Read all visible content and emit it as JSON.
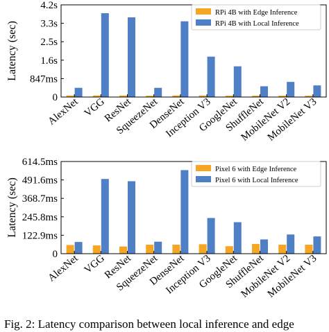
{
  "chart_data": [
    {
      "type": "bar",
      "ylabel": "Latency (sec)",
      "yticks": [
        "0",
        "847ms",
        "1.6s",
        "2.5s",
        "3.3s",
        "4.2s"
      ],
      "ylim": [
        0,
        4.2
      ],
      "categories": [
        "AlexNet",
        "VGG",
        "ResNet",
        "SqueezeNet",
        "DenseNet",
        "Inception V3",
        "GoogleNet",
        "ShuffleNet",
        "MobileNet V2",
        "MobileNet V3"
      ],
      "series": [
        {
          "name": "RPi 4B with Edge Inference",
          "color": "#f5a623",
          "values": [
            0.07,
            0.07,
            0.07,
            0.06,
            0.07,
            0.07,
            0.06,
            0.06,
            0.06,
            0.06
          ]
        },
        {
          "name": "RPi 4B with Local Inference",
          "color": "#4f7fc4",
          "values": [
            0.42,
            3.82,
            3.63,
            0.42,
            3.45,
            1.84,
            1.4,
            0.49,
            0.69,
            0.53
          ]
        }
      ],
      "legend": "top-right",
      "grid": false
    },
    {
      "type": "bar",
      "ylabel": "Latency (sec)",
      "yticks": [
        "0",
        "122.9ms",
        "245.8ms",
        "368.7ms",
        "491.6ms",
        "614.5ms"
      ],
      "ylim": [
        0,
        614.5
      ],
      "categories": [
        "AlexNet",
        "VGG",
        "ResNet",
        "SqueezeNet",
        "DenseNet",
        "Inception V3",
        "GoogleNet",
        "ShuffleNet",
        "MobileNet V2",
        "MobileNet V3"
      ],
      "series": [
        {
          "name": "Pixel 6 with Edge Inference",
          "color": "#f5a623",
          "values": [
            58,
            55,
            48,
            60,
            60,
            63,
            50,
            65,
            60,
            60
          ]
        },
        {
          "name": "Pixel 6 with Local Inference",
          "color": "#4f7fc4",
          "values": [
            78,
            498,
            483,
            80,
            557,
            238,
            210,
            95,
            128,
            115
          ]
        }
      ],
      "legend": "top-right",
      "grid": false
    }
  ],
  "caption": "Fig. 2: Latency comparison between local inference and edge"
}
